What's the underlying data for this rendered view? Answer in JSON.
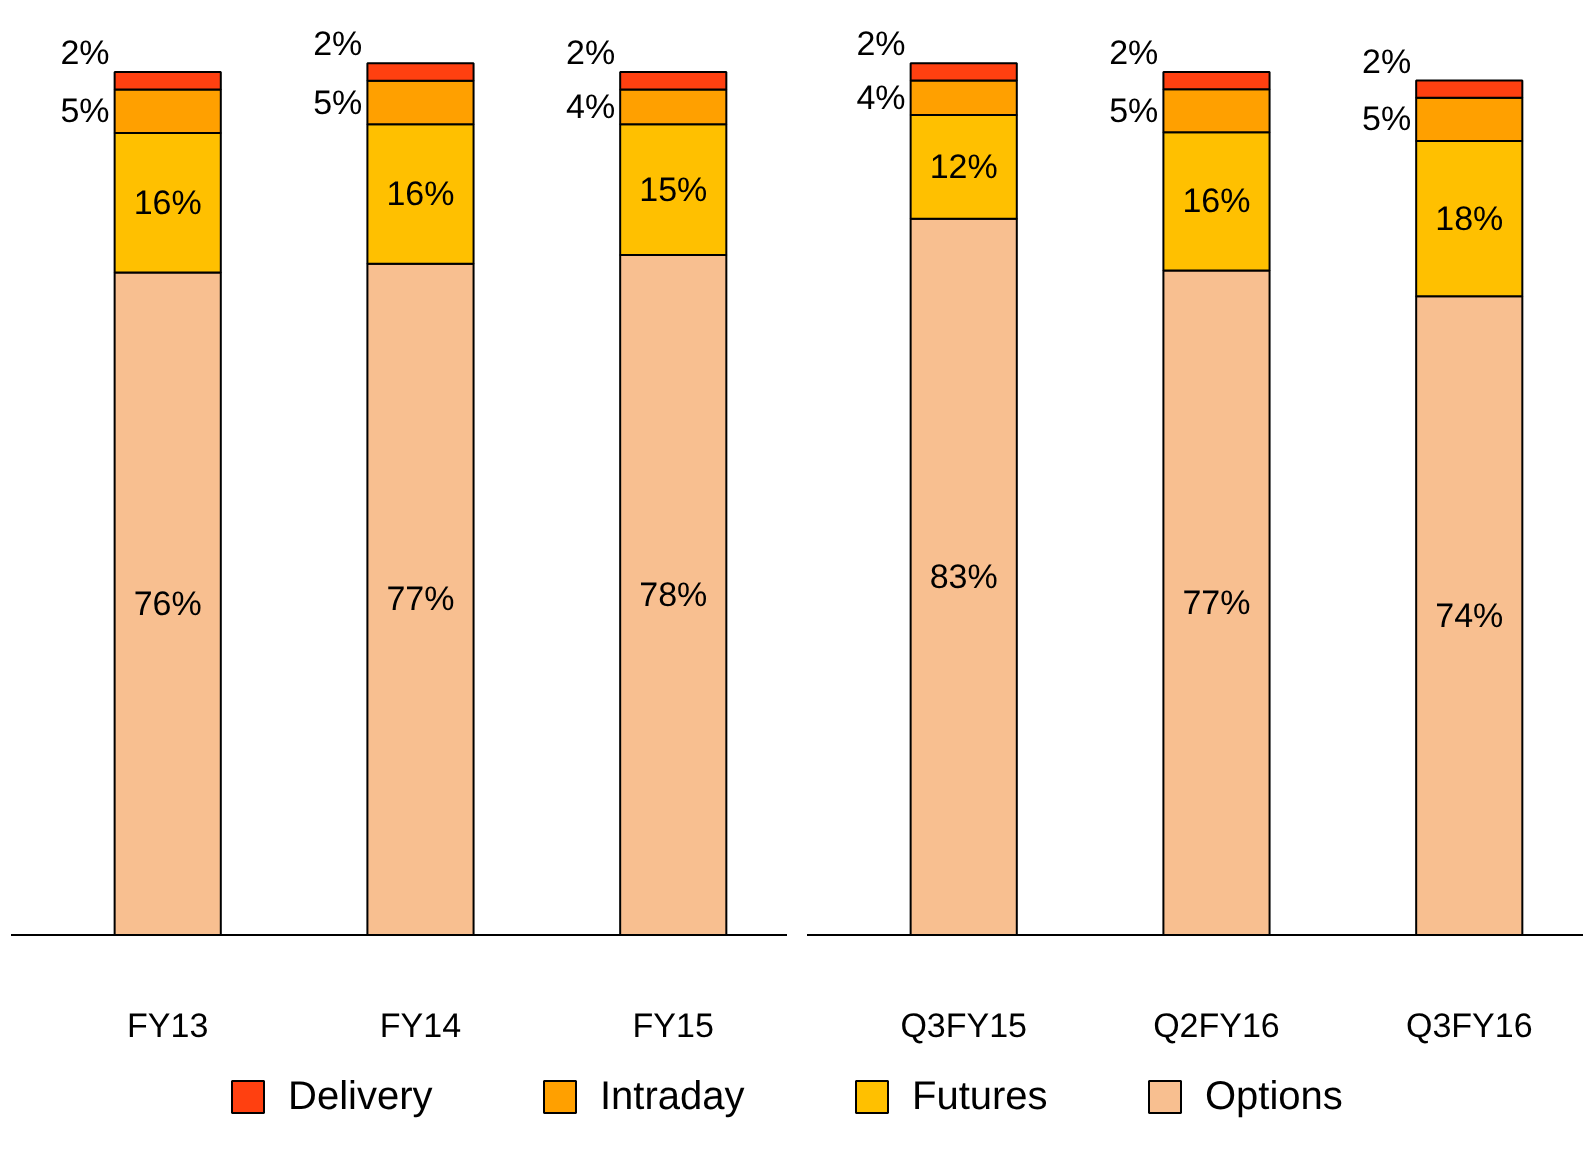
{
  "chart_data": [
    {
      "type": "bar",
      "stacked": true,
      "categories": [
        "FY13",
        "FY14",
        "FY15"
      ],
      "tick_labels": "x",
      "grid": false,
      "legend": "bottom",
      "series": [
        {
          "name": "Options",
          "color": "#f8bf90",
          "values": [
            76,
            77,
            78
          ],
          "value_labels": [
            "76%",
            "77%",
            "78%"
          ]
        },
        {
          "name": "Futures",
          "color": "#ffc000",
          "values": [
            16,
            16,
            15
          ],
          "value_labels": [
            "16%",
            "16%",
            "15%"
          ]
        },
        {
          "name": "Intraday",
          "color": "#ffa000",
          "values": [
            5,
            5,
            4
          ],
          "value_labels": [
            "5%",
            "5%",
            "4%"
          ]
        },
        {
          "name": "Delivery",
          "color": "#ff4010",
          "values": [
            2,
            2,
            2
          ],
          "value_labels": [
            "2%",
            "2%",
            "2%"
          ]
        }
      ]
    },
    {
      "type": "bar",
      "stacked": true,
      "categories": [
        "Q3FY15",
        "Q2FY16",
        "Q3FY16"
      ],
      "tick_labels": "x",
      "grid": false,
      "series": [
        {
          "color": "#f8bf90",
          "values": [
            83,
            77,
            74
          ],
          "value_labels": [
            "83%",
            "77%",
            "74%"
          ]
        },
        {
          "color": "#ffc000",
          "values": [
            12,
            16,
            18
          ],
          "value_labels": [
            "12%",
            "16%",
            "18%"
          ]
        },
        {
          "color": "#ffa000",
          "values": [
            4,
            5,
            5
          ],
          "value_labels": [
            "4%",
            "5%",
            "5%"
          ]
        },
        {
          "color": "#ff4010",
          "values": [
            2,
            2,
            2
          ],
          "value_labels": [
            "2%",
            "2%",
            "2%"
          ]
        }
      ]
    }
  ]
}
